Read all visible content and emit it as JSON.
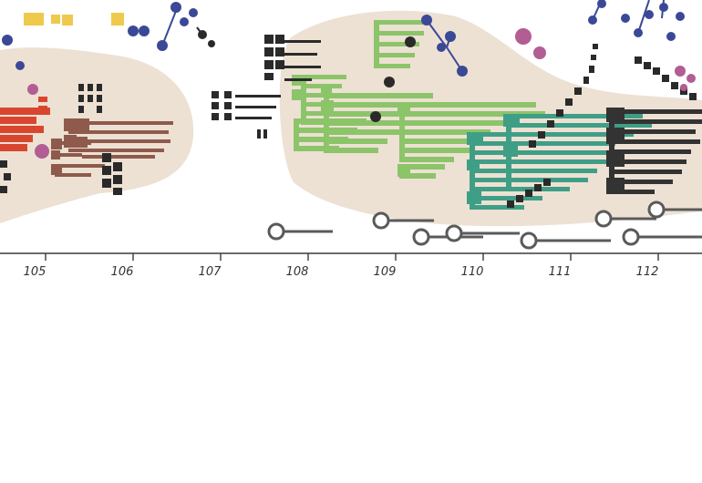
{
  "palette": {
    "paper": "#ffffff",
    "blob": "#ede1d3",
    "axis": "#3a3a3a",
    "black_marks": "#2a2a2a",
    "red_series": "#d9462f",
    "brown_series": "#8e5a4c",
    "light_green_series": "#8cc46a",
    "teal_series": "#3f9e86",
    "dark_series": "#333333",
    "navy_dots": "#3b4896",
    "pink_dots": "#b25d93",
    "yellow_squares": "#efc94c",
    "hollow_rings": "#5a5a5a"
  },
  "axis": {
    "ticks": [
      "105",
      "106",
      "107",
      "108",
      "109",
      "110",
      "111",
      "112"
    ]
  }
}
